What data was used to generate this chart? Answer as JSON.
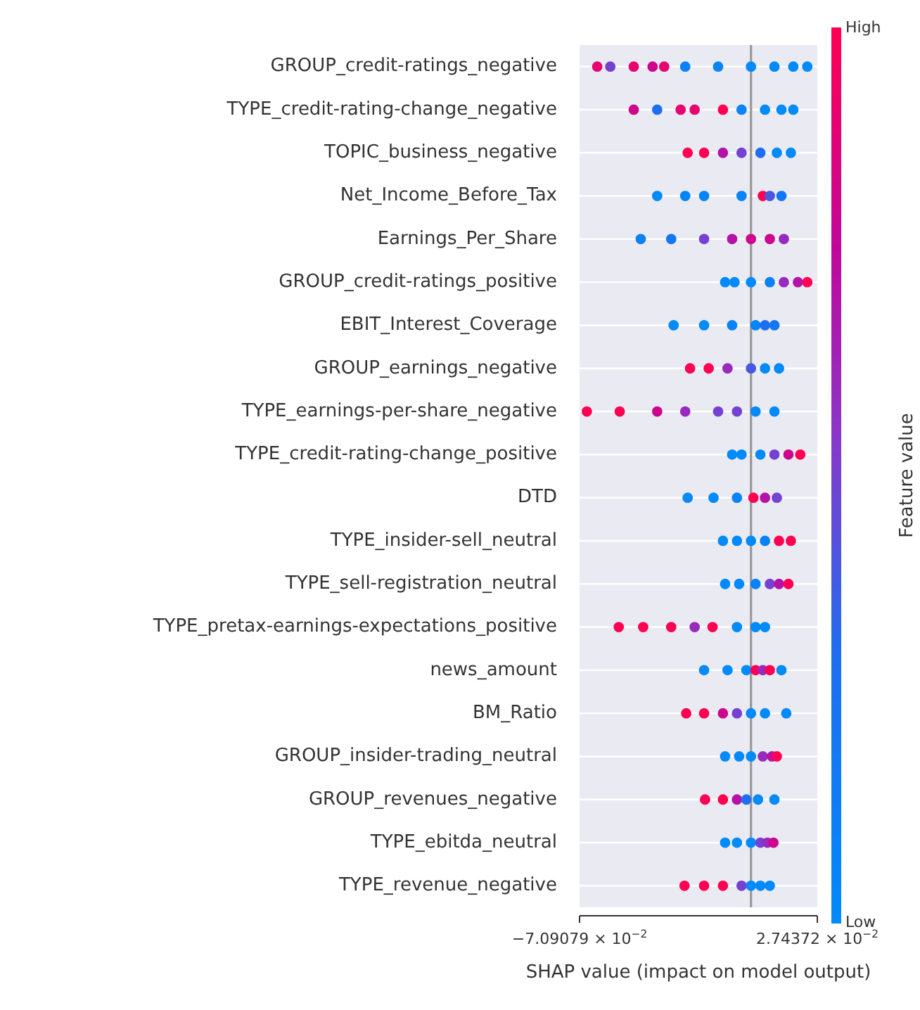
{
  "chart_data": {
    "type": "scatter",
    "orientation": "horizontal",
    "xlabel": "SHAP value (impact on model output)",
    "clabel": "Feature value",
    "clim": [
      0,
      1
    ],
    "cticks": [
      {
        "value": 0,
        "label": "Low"
      },
      {
        "value": 1,
        "label": "High"
      }
    ],
    "xlim": [
      -0.0709079,
      0.0274372
    ],
    "xticks": [
      {
        "value": -0.0709079,
        "label": "−7.09079 × 10$^{−2}$"
      },
      {
        "value": 0.0274372,
        "label": "2.74372 × 10$^{−2}$"
      }
    ],
    "grid": "y",
    "legend": false,
    "marker": "circle",
    "ref_lines": [
      {
        "axis": "x",
        "value": 0,
        "color": "#999999"
      }
    ],
    "categories": [
      "GROUP_credit-ratings_negative",
      "TYPE_credit-rating-change_negative",
      "TOPIC_business_negative",
      "Net_Income_Before_Tax",
      "Earnings_Per_Share",
      "GROUP_credit-ratings_positive",
      "EBIT_Interest_Coverage",
      "GROUP_earnings_negative",
      "TYPE_earnings-per-share_negative",
      "TYPE_credit-rating-change_positive",
      "DTD",
      "TYPE_insider-sell_neutral",
      "TYPE_sell-registration_neutral",
      "TYPE_pretax-earnings-expectations_positive",
      "news_amount",
      "BM_Ratio",
      "GROUP_insider-trading_neutral",
      "GROUP_revenues_negative",
      "TYPE_ebitda_neutral",
      "TYPE_revenue_negative"
    ],
    "series": [
      {
        "x": [
          "GROUP_credit-ratings_negative",
          "GROUP_credit-ratings_negative",
          "GROUP_credit-ratings_negative",
          "GROUP_credit-ratings_negative",
          "GROUP_credit-ratings_negative",
          "GROUP_credit-ratings_negative",
          "GROUP_credit-ratings_negative",
          "GROUP_credit-ratings_negative",
          "GROUP_credit-ratings_negative",
          "GROUP_credit-ratings_negative",
          "GROUP_credit-ratings_negative"
        ],
        "values": [
          -0.0636,
          -0.0582,
          -0.0485,
          -0.0407,
          -0.0359,
          -0.0272,
          -0.0136,
          0,
          0.0097,
          0.0175,
          0.0233
        ],
        "cvalues": [
          0.9,
          0.5,
          0.9,
          0.8,
          0.9,
          0.1,
          0.05,
          0,
          0,
          0,
          0
        ],
        "colors": [
          "#e60370",
          "#7541d1",
          "#e60370",
          "#cd068d",
          "#e60370",
          "#0a81f7",
          "#0585f8",
          "#008afa",
          "#008afa",
          "#008afa",
          "#008afa"
        ]
      },
      {
        "x": [
          "TYPE_credit-rating-change_negative",
          "TYPE_credit-rating-change_negative",
          "TYPE_credit-rating-change_negative",
          "TYPE_credit-rating-change_negative",
          "TYPE_credit-rating-change_negative",
          "TYPE_credit-rating-change_negative",
          "TYPE_credit-rating-change_negative",
          "TYPE_credit-rating-change_negative",
          "TYPE_credit-rating-change_negative"
        ],
        "values": [
          -0.0485,
          -0.0388,
          -0.0291,
          -0.0233,
          -0.0116,
          -0.0039,
          0.0058,
          0.0126,
          0.0175
        ],
        "cvalues": [
          0.8,
          0.3,
          0.9,
          0.9,
          1,
          0.05,
          0,
          0,
          0
        ],
        "colors": [
          "#cd068d",
          "#1e6ef0",
          "#e60370",
          "#e60370",
          "#ff0052",
          "#0585f8",
          "#008afa",
          "#008afa",
          "#008afa"
        ]
      },
      {
        "x": [
          "TOPIC_business_negative",
          "TOPIC_business_negative",
          "TOPIC_business_negative",
          "TOPIC_business_negative",
          "TOPIC_business_negative",
          "TOPIC_business_negative",
          "TOPIC_business_negative"
        ],
        "values": [
          -0.0262,
          -0.0194,
          -0.0116,
          -0.0039,
          0.0039,
          0.0107,
          0.0165
        ],
        "cvalues": [
          1,
          1,
          0.7,
          0.5,
          0.3,
          0,
          0
        ],
        "colors": [
          "#ff0052",
          "#ff0052",
          "#b313a7",
          "#7541d1",
          "#1e6ef0",
          "#008afa",
          "#008afa"
        ]
      },
      {
        "x": [
          "Net_Income_Before_Tax",
          "Net_Income_Before_Tax",
          "Net_Income_Before_Tax",
          "Net_Income_Before_Tax",
          "Net_Income_Before_Tax",
          "Net_Income_Before_Tax",
          "Net_Income_Before_Tax"
        ],
        "values": [
          -0.0388,
          -0.0272,
          -0.0194,
          -0.0039,
          0.0049,
          0.0078,
          0.0126
        ],
        "cvalues": [
          0,
          0.05,
          0.05,
          0.05,
          1,
          0.4,
          0.2
        ],
        "colors": [
          "#008afa",
          "#0585f8",
          "#0585f8",
          "#0585f8",
          "#ff0052",
          "#4a58e0",
          "#1477f3"
        ]
      },
      {
        "x": [
          "Earnings_Per_Share",
          "Earnings_Per_Share",
          "Earnings_Per_Share",
          "Earnings_Per_Share",
          "Earnings_Per_Share",
          "Earnings_Per_Share",
          "Earnings_Per_Share"
        ],
        "values": [
          -0.0456,
          -0.033,
          -0.0194,
          -0.0078,
          0,
          0.0078,
          0.0136
        ],
        "cvalues": [
          0.1,
          0.2,
          0.5,
          0.7,
          0.8,
          0.8,
          0.6
        ],
        "colors": [
          "#0a81f7",
          "#1477f3",
          "#7541d1",
          "#b313a7",
          "#cd068d",
          "#cd068d",
          "#982abe"
        ]
      },
      {
        "x": [
          "GROUP_credit-ratings_positive",
          "GROUP_credit-ratings_positive",
          "GROUP_credit-ratings_positive",
          "GROUP_credit-ratings_positive",
          "GROUP_credit-ratings_positive",
          "GROUP_credit-ratings_positive",
          "GROUP_credit-ratings_positive"
        ],
        "values": [
          -0.0107,
          -0.0068,
          0,
          0.0078,
          0.0136,
          0.0194,
          0.0233
        ],
        "cvalues": [
          0,
          0,
          0,
          0.1,
          0.6,
          0.7,
          1
        ],
        "colors": [
          "#008afa",
          "#008afa",
          "#008afa",
          "#0a81f7",
          "#982abe",
          "#b313a7",
          "#ff0052"
        ]
      },
      {
        "x": [
          "EBIT_Interest_Coverage",
          "EBIT_Interest_Coverage",
          "EBIT_Interest_Coverage",
          "EBIT_Interest_Coverage",
          "EBIT_Interest_Coverage",
          "EBIT_Interest_Coverage"
        ],
        "values": [
          -0.032,
          -0.0194,
          -0.0078,
          0.0019,
          0.0058,
          0.0097
        ],
        "cvalues": [
          0,
          0,
          0.05,
          0.05,
          0.3,
          0.2
        ],
        "colors": [
          "#008afa",
          "#008afa",
          "#0585f8",
          "#0585f8",
          "#1e6ef0",
          "#1477f3"
        ]
      },
      {
        "x": [
          "GROUP_earnings_negative",
          "GROUP_earnings_negative",
          "GROUP_earnings_negative",
          "GROUP_earnings_negative",
          "GROUP_earnings_negative",
          "GROUP_earnings_negative"
        ],
        "values": [
          -0.0252,
          -0.0175,
          -0.0097,
          0,
          0.0058,
          0.0116
        ],
        "cvalues": [
          1,
          1,
          0.6,
          0.4,
          0,
          0
        ],
        "colors": [
          "#ff0052",
          "#ff0052",
          "#982abe",
          "#4a58e0",
          "#008afa",
          "#008afa"
        ]
      },
      {
        "x": [
          "TYPE_earnings-per-share_negative",
          "TYPE_earnings-per-share_negative",
          "TYPE_earnings-per-share_negative",
          "TYPE_earnings-per-share_negative",
          "TYPE_earnings-per-share_negative",
          "TYPE_earnings-per-share_negative",
          "TYPE_earnings-per-share_negative",
          "TYPE_earnings-per-share_negative"
        ],
        "values": [
          -0.0679,
          -0.0543,
          -0.0388,
          -0.0272,
          -0.0136,
          -0.0058,
          0.0019,
          0.0097
        ],
        "cvalues": [
          1,
          1,
          0.8,
          0.6,
          0.5,
          0.5,
          0,
          0
        ],
        "colors": [
          "#ff0052",
          "#ff0052",
          "#cd068d",
          "#982abe",
          "#7541d1",
          "#7541d1",
          "#008afa",
          "#008afa"
        ]
      },
      {
        "x": [
          "TYPE_credit-rating-change_positive",
          "TYPE_credit-rating-change_positive",
          "TYPE_credit-rating-change_positive",
          "TYPE_credit-rating-change_positive",
          "TYPE_credit-rating-change_positive",
          "TYPE_credit-rating-change_positive"
        ],
        "values": [
          -0.0078,
          -0.0039,
          0.0039,
          0.0097,
          0.0155,
          0.0204
        ],
        "cvalues": [
          0,
          0,
          0,
          0.5,
          0.8,
          1
        ],
        "colors": [
          "#008afa",
          "#008afa",
          "#008afa",
          "#7541d1",
          "#cd068d",
          "#ff0052"
        ]
      },
      {
        "x": [
          "DTD",
          "DTD",
          "DTD",
          "DTD",
          "DTD",
          "DTD"
        ],
        "values": [
          -0.0262,
          -0.0155,
          -0.0058,
          0.001,
          0.0058,
          0.0107
        ],
        "cvalues": [
          0,
          0,
          0.05,
          1,
          0.7,
          0.5
        ],
        "colors": [
          "#008afa",
          "#008afa",
          "#0585f8",
          "#ff0052",
          "#b313a7",
          "#7541d1"
        ]
      },
      {
        "x": [
          "TYPE_insider-sell_neutral",
          "TYPE_insider-sell_neutral",
          "TYPE_insider-sell_neutral",
          "TYPE_insider-sell_neutral",
          "TYPE_insider-sell_neutral",
          "TYPE_insider-sell_neutral"
        ],
        "values": [
          -0.0116,
          -0.0058,
          0,
          0.0058,
          0.0116,
          0.0165
        ],
        "cvalues": [
          0,
          0,
          0,
          0.1,
          1,
          1
        ],
        "colors": [
          "#008afa",
          "#008afa",
          "#008afa",
          "#0a81f7",
          "#ff0052",
          "#ff0052"
        ]
      },
      {
        "x": [
          "TYPE_sell-registration_neutral",
          "TYPE_sell-registration_neutral",
          "TYPE_sell-registration_neutral",
          "TYPE_sell-registration_neutral",
          "TYPE_sell-registration_neutral",
          "TYPE_sell-registration_neutral"
        ],
        "values": [
          -0.0107,
          -0.0049,
          0.0019,
          0.0078,
          0.0116,
          0.0155
        ],
        "cvalues": [
          0,
          0,
          0.1,
          0.5,
          0.7,
          1
        ],
        "colors": [
          "#008afa",
          "#008afa",
          "#0a81f7",
          "#7541d1",
          "#b313a7",
          "#ff0052"
        ]
      },
      {
        "x": [
          "TYPE_pretax-earnings-expectations_positive",
          "TYPE_pretax-earnings-expectations_positive",
          "TYPE_pretax-earnings-expectations_positive",
          "TYPE_pretax-earnings-expectations_positive",
          "TYPE_pretax-earnings-expectations_positive",
          "TYPE_pretax-earnings-expectations_positive",
          "TYPE_pretax-earnings-expectations_positive",
          "TYPE_pretax-earnings-expectations_positive"
        ],
        "values": [
          -0.0547,
          -0.0446,
          -0.033,
          -0.0233,
          -0.0159,
          -0.0058,
          0.0019,
          0.0058
        ],
        "cvalues": [
          1,
          1,
          1,
          0.6,
          1,
          0,
          0,
          0
        ],
        "colors": [
          "#ff0052",
          "#ff0052",
          "#ff0052",
          "#982abe",
          "#ff0052",
          "#008afa",
          "#008afa",
          "#008afa"
        ]
      },
      {
        "x": [
          "news_amount",
          "news_amount",
          "news_amount",
          "news_amount",
          "news_amount",
          "news_amount",
          "news_amount"
        ],
        "values": [
          -0.0194,
          -0.0097,
          -0.0019,
          0.0019,
          0.0049,
          0.0078,
          0.0126
        ],
        "cvalues": [
          0,
          0,
          0,
          1,
          0.6,
          1,
          0
        ],
        "colors": [
          "#008afa",
          "#008afa",
          "#008afa",
          "#ff0052",
          "#982abe",
          "#ff0052",
          "#008afa"
        ]
      },
      {
        "x": [
          "BM_Ratio",
          "BM_Ratio",
          "BM_Ratio",
          "BM_Ratio",
          "BM_Ratio",
          "BM_Ratio",
          "BM_Ratio"
        ],
        "values": [
          -0.0268,
          -0.0194,
          -0.0116,
          -0.0058,
          0,
          0.0058,
          0.0146
        ],
        "cvalues": [
          1,
          1,
          0.8,
          0.5,
          0,
          0,
          0
        ],
        "colors": [
          "#ff0052",
          "#ff0052",
          "#cd068d",
          "#7541d1",
          "#008afa",
          "#008afa",
          "#008afa"
        ]
      },
      {
        "x": [
          "GROUP_insider-trading_neutral",
          "GROUP_insider-trading_neutral",
          "GROUP_insider-trading_neutral",
          "GROUP_insider-trading_neutral",
          "GROUP_insider-trading_neutral",
          "GROUP_insider-trading_neutral"
        ],
        "values": [
          -0.0107,
          -0.0049,
          0,
          0.0049,
          0.0087,
          0.0107
        ],
        "cvalues": [
          0,
          0,
          0,
          0.6,
          0.7,
          1
        ],
        "colors": [
          "#008afa",
          "#008afa",
          "#008afa",
          "#982abe",
          "#b313a7",
          "#ff0052"
        ]
      },
      {
        "x": [
          "GROUP_revenues_negative",
          "GROUP_revenues_negative",
          "GROUP_revenues_negative",
          "GROUP_revenues_negative",
          "GROUP_revenues_negative",
          "GROUP_revenues_negative"
        ],
        "values": [
          -0.019,
          -0.0116,
          -0.0058,
          -0.0019,
          0.0029,
          0.0097
        ],
        "cvalues": [
          1,
          1,
          0.7,
          0.3,
          0,
          0
        ],
        "colors": [
          "#ff0052",
          "#ff0052",
          "#b313a7",
          "#1e6ef0",
          "#008afa",
          "#008afa"
        ]
      },
      {
        "x": [
          "TYPE_ebitda_neutral",
          "TYPE_ebitda_neutral",
          "TYPE_ebitda_neutral",
          "TYPE_ebitda_neutral",
          "TYPE_ebitda_neutral",
          "TYPE_ebitda_neutral"
        ],
        "values": [
          -0.0107,
          -0.0058,
          0,
          0.0039,
          0.0068,
          0.0093
        ],
        "cvalues": [
          0,
          0,
          0,
          0.5,
          0.6,
          0.8
        ],
        "colors": [
          "#008afa",
          "#008afa",
          "#008afa",
          "#7541d1",
          "#982abe",
          "#cd068d"
        ]
      },
      {
        "x": [
          "TYPE_revenue_negative",
          "TYPE_revenue_negative",
          "TYPE_revenue_negative",
          "TYPE_revenue_negative",
          "TYPE_revenue_negative",
          "TYPE_revenue_negative",
          "TYPE_revenue_negative"
        ],
        "values": [
          -0.0275,
          -0.0194,
          -0.0116,
          -0.0039,
          0,
          0.0039,
          0.0078
        ],
        "cvalues": [
          1,
          1,
          1,
          0.5,
          0,
          0,
          0
        ],
        "colors": [
          "#ff0052",
          "#ff0052",
          "#ff0052",
          "#7541d1",
          "#008afa",
          "#008afa",
          "#008afa"
        ]
      }
    ]
  }
}
